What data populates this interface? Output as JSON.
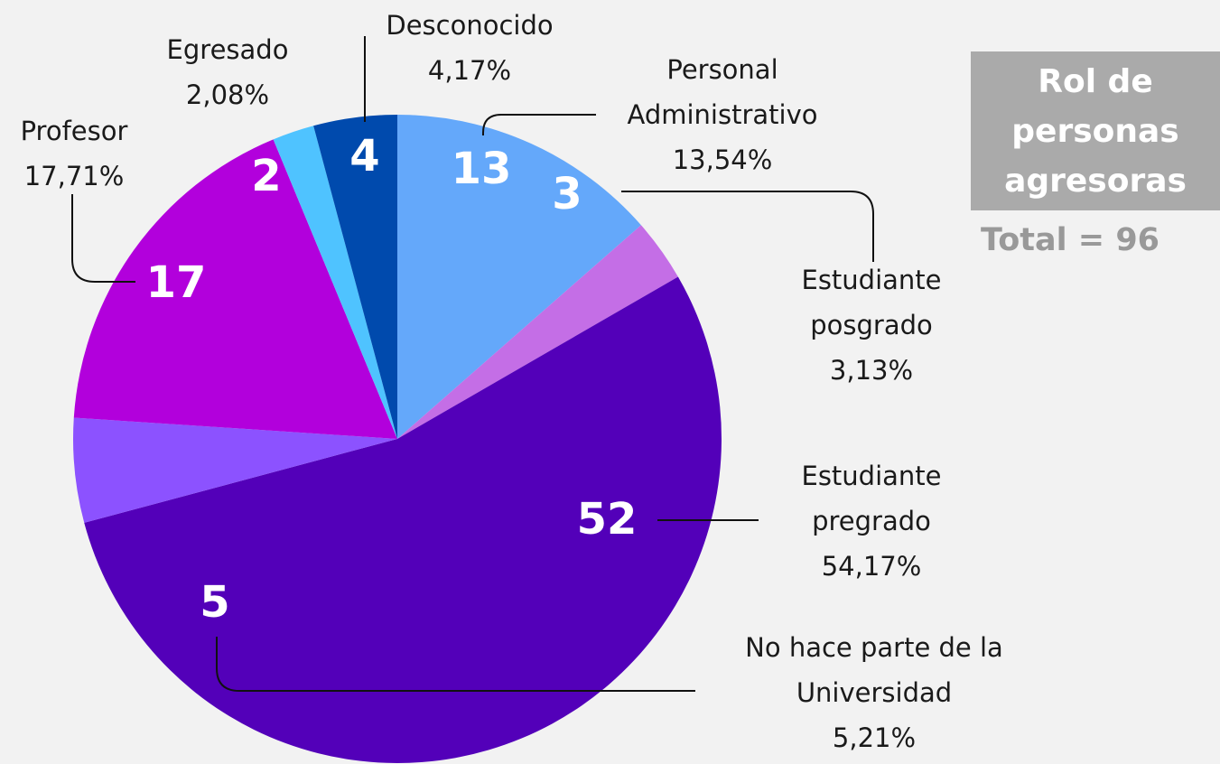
{
  "chart_data": {
    "type": "pie",
    "title": "Rol de\npersonas\nagresoras",
    "total_label": "Total = 96",
    "categories": [
      "Personal\nAdministrativo",
      "Estudiante\nposgrado",
      "Estudiante\npregrado",
      "No hace parte de la\nUniversidad",
      "Profesor",
      "Egresado",
      "Desconocido"
    ],
    "values": [
      13,
      3,
      52,
      5,
      17,
      2,
      4
    ],
    "percent_labels": [
      "13,54%",
      "3,13%",
      "54,17%",
      "5,21%",
      "17,71%",
      "2,08%",
      "4,17%"
    ],
    "colors": [
      "#64a8fa",
      "#c46ee6",
      "#5300b9",
      "#8c52ff",
      "#b200dc",
      "#4fc3ff",
      "#004aad"
    ]
  }
}
